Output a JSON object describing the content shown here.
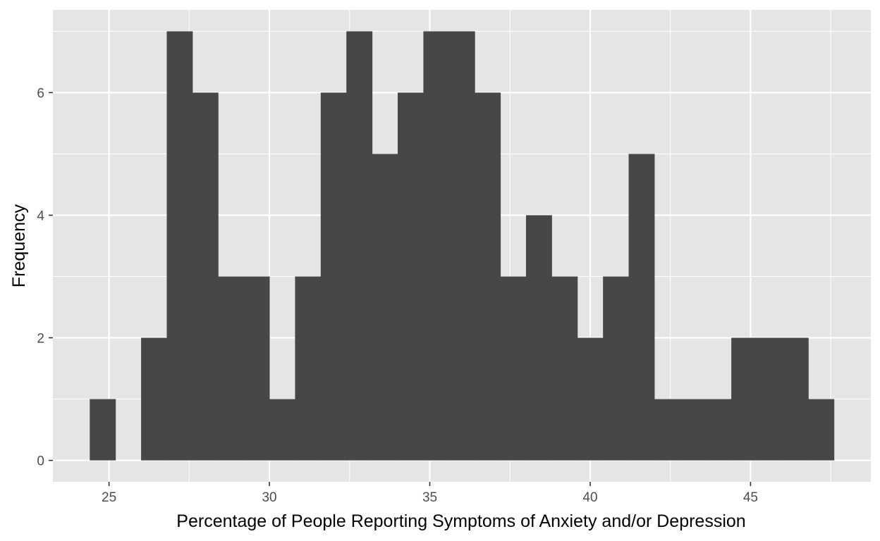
{
  "chart_data": {
    "type": "bar",
    "subtype": "histogram",
    "title": "",
    "xlabel": "Percentage of People Reporting Symptoms of Anxiety and/or Depression",
    "ylabel": "Frequency",
    "xlim": [
      23.25,
      48.75
    ],
    "ylim": [
      -0.35,
      7.35
    ],
    "x_ticks": [
      25,
      30,
      35,
      40,
      45
    ],
    "y_ticks": [
      0,
      2,
      4,
      6
    ],
    "bin_width": 0.8,
    "bins": [
      {
        "x0": 24.4,
        "x1": 25.2,
        "count": 1
      },
      {
        "x0": 25.2,
        "x1": 26.0,
        "count": 0
      },
      {
        "x0": 26.0,
        "x1": 26.8,
        "count": 2
      },
      {
        "x0": 26.8,
        "x1": 27.6,
        "count": 7
      },
      {
        "x0": 27.6,
        "x1": 28.4,
        "count": 6
      },
      {
        "x0": 28.4,
        "x1": 29.2,
        "count": 3
      },
      {
        "x0": 29.2,
        "x1": 30.0,
        "count": 3
      },
      {
        "x0": 30.0,
        "x1": 30.8,
        "count": 1
      },
      {
        "x0": 30.8,
        "x1": 31.6,
        "count": 3
      },
      {
        "x0": 31.6,
        "x1": 32.4,
        "count": 6
      },
      {
        "x0": 32.4,
        "x1": 33.2,
        "count": 7
      },
      {
        "x0": 33.2,
        "x1": 34.0,
        "count": 5
      },
      {
        "x0": 34.0,
        "x1": 34.8,
        "count": 6
      },
      {
        "x0": 34.8,
        "x1": 35.6,
        "count": 7
      },
      {
        "x0": 35.6,
        "x1": 36.4,
        "count": 7
      },
      {
        "x0": 36.4,
        "x1": 37.2,
        "count": 6
      },
      {
        "x0": 37.2,
        "x1": 38.0,
        "count": 3
      },
      {
        "x0": 38.0,
        "x1": 38.8,
        "count": 4
      },
      {
        "x0": 38.8,
        "x1": 39.6,
        "count": 3
      },
      {
        "x0": 39.6,
        "x1": 40.4,
        "count": 2
      },
      {
        "x0": 40.4,
        "x1": 41.2,
        "count": 3
      },
      {
        "x0": 41.2,
        "x1": 42.0,
        "count": 5
      },
      {
        "x0": 42.0,
        "x1": 42.8,
        "count": 1
      },
      {
        "x0": 42.8,
        "x1": 43.6,
        "count": 1
      },
      {
        "x0": 43.6,
        "x1": 44.4,
        "count": 1
      },
      {
        "x0": 44.4,
        "x1": 45.2,
        "count": 2
      },
      {
        "x0": 45.2,
        "x1": 46.0,
        "count": 2
      },
      {
        "x0": 46.0,
        "x1": 46.8,
        "count": 2
      },
      {
        "x0": 46.8,
        "x1": 47.6,
        "count": 1
      }
    ],
    "grid": true,
    "legend": "none",
    "colors": {
      "bar": "#474747",
      "panel_background": "#e5e5e5",
      "grid_line": "#ffffff",
      "tick_text": "#4d4d4d",
      "axis_title": "#000000"
    }
  }
}
